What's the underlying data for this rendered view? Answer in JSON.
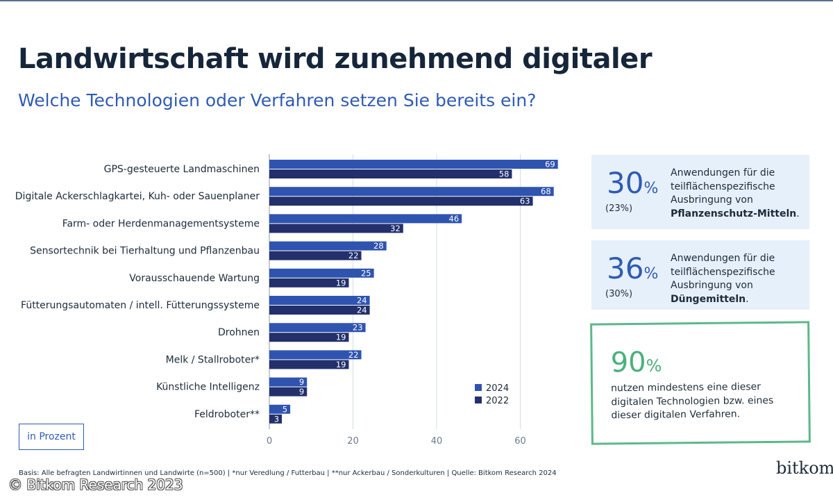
{
  "header": {
    "title": "Landwirtschaft wird zunehmend digitaler",
    "subtitle": "Welche Technologien oder Verfahren setzen Sie bereits ein?"
  },
  "chart_data": {
    "type": "bar",
    "orientation": "horizontal",
    "categories": [
      "GPS-gesteuerte Landmaschinen",
      "Digitale Ackerschlagkartei, Kuh- oder Sauenplaner",
      "Farm- oder Herdenmanagementsysteme",
      "Sensortechnik bei Tierhaltung und Pflanzenbau",
      "Vorausschauende Wartung",
      "Fütterungsautomaten / intell. Fütterungssysteme",
      "Drohnen",
      "Melk / Stallroboter*",
      "Künstliche Intelligenz",
      "Feldroboter**"
    ],
    "series": [
      {
        "name": "2024",
        "color": "#2f54b0",
        "values": [
          69,
          68,
          46,
          28,
          25,
          24,
          23,
          22,
          9,
          5
        ]
      },
      {
        "name": "2022",
        "color": "#23306c",
        "values": [
          58,
          63,
          32,
          22,
          19,
          24,
          19,
          19,
          9,
          3
        ]
      }
    ],
    "xlim": [
      0,
      70
    ],
    "xticks": [
      0,
      20,
      40,
      60
    ],
    "grid": true,
    "legend": "bottom-right",
    "unit_label": "in Prozent"
  },
  "stats": [
    {
      "value": "30",
      "unit": "%",
      "previous": "(23%)",
      "text": "Anwendungen für die teilflächenspezifische Ausbringung von",
      "emphasis": "Pflanzenschutz-Mitteln",
      "end": "."
    },
    {
      "value": "36",
      "unit": "%",
      "previous": "(30%)",
      "text": "Anwendungen für die teilflächenspezifische Ausbringung von",
      "emphasis": "Düngemitteln",
      "end": "."
    }
  ],
  "highlight": {
    "value": "90",
    "unit": "%",
    "text": "nutzen mindestens eine dieser digitalen Technologien bzw. eines dieser digitalen Verfahren."
  },
  "footer": {
    "note": "Basis: Alle befragten Landwirtinnen und Landwirte (n=500) | *nur Veredlung / Futterbau | **nur Ackerbau / Sonderkulturen | Quelle: Bitkom Research 2024",
    "logo": "bitkom",
    "copyright": "© Bitkom Research 2023"
  },
  "colors": {
    "accent": "#2f5bb3",
    "bar_2024": "#2f54b0",
    "bar_2022": "#23306c",
    "stat_bg": "#e6f0fa",
    "green": "#5cb88a"
  }
}
